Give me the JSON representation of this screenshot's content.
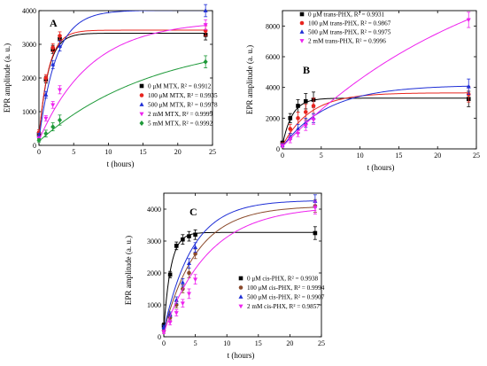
{
  "chart_data": [
    {
      "type": "scatter",
      "panel_label": "A",
      "xlabel": "t (hours)",
      "ylabel": "EPR amplitude (a. u.)",
      "xlim": [
        0,
        25
      ],
      "ylim": [
        0,
        4000
      ],
      "xticks": [
        0,
        5,
        10,
        15,
        20,
        25
      ],
      "yticks": [
        0,
        1000,
        2000,
        3000,
        4000
      ],
      "legend_position": "center-right",
      "x": [
        0,
        1,
        2,
        3,
        24
      ],
      "series": [
        {
          "name": "0 μM MTX, R² = 0.9912",
          "color": "#000000",
          "marker": "square",
          "values": [
            330,
            1950,
            2850,
            3150,
            3280
          ],
          "errors": [
            80,
            100,
            120,
            120,
            150
          ],
          "fit": {
            "a": 3330,
            "k": 0.75,
            "c": 200
          }
        },
        {
          "name": "100 μM MTX, R² = 0.9935",
          "color": "#e8251f",
          "marker": "circle",
          "values": [
            380,
            2000,
            2900,
            3250,
            3400
          ],
          "errors": [
            80,
            100,
            120,
            120,
            150
          ],
          "fit": {
            "a": 3420,
            "k": 0.72,
            "c": 250
          }
        },
        {
          "name": "500 μM MTX, R² = 0.9978",
          "color": "#1f2fd6",
          "marker": "triangle-up",
          "values": [
            280,
            1500,
            2400,
            2950,
            4000
          ],
          "errors": [
            80,
            100,
            120,
            150,
            180
          ],
          "fit": {
            "a": 4010,
            "k": 0.4,
            "c": 180
          }
        },
        {
          "name": "2 mM MTX, R² = 0.9999",
          "color": "#ee22ee",
          "marker": "triangle-down",
          "values": [
            200,
            800,
            1200,
            1650,
            3580
          ],
          "errors": [
            60,
            80,
            100,
            120,
            150
          ],
          "fit": {
            "a": 3700,
            "k": 0.135,
            "c": 150
          }
        },
        {
          "name": "5 mM MTX, R² = 0.9992",
          "color": "#1f9a3a",
          "marker": "diamond",
          "values": [
            150,
            350,
            550,
            750,
            2480
          ],
          "errors": [
            50,
            100,
            120,
            150,
            180
          ],
          "fit": {
            "a": 3200,
            "k": 0.06,
            "c": 120
          }
        }
      ]
    },
    {
      "type": "scatter",
      "panel_label": "B",
      "xlabel": "t (hours)",
      "ylabel": "EPR amplitude (a. u.)",
      "xlim": [
        0,
        25
      ],
      "ylim": [
        0,
        9000
      ],
      "xticks": [
        0,
        5,
        10,
        15,
        20,
        25
      ],
      "yticks": [
        0,
        2000,
        4000,
        6000,
        8000
      ],
      "legend_position": "top-left",
      "x": [
        0,
        1,
        2,
        3,
        4,
        24
      ],
      "series": [
        {
          "name": "0 μM trans-PHX, R² = 0.9931",
          "color": "#000000",
          "marker": "square",
          "values": [
            400,
            2000,
            2800,
            3100,
            3200,
            3250
          ],
          "errors": [
            100,
            300,
            400,
            500,
            500,
            500
          ],
          "fit": {
            "a": 3300,
            "k": 0.8,
            "c": 250
          }
        },
        {
          "name": "100 μM trans-PHX, R² = 0.9867",
          "color": "#e8251f",
          "marker": "circle",
          "values": [
            300,
            1300,
            2000,
            2400,
            2800,
            3550
          ],
          "errors": [
            100,
            300,
            400,
            500,
            500,
            500
          ],
          "fit": {
            "a": 3650,
            "k": 0.28,
            "c": 200
          }
        },
        {
          "name": "500 μM trans-PHX, R² = 0.9975",
          "color": "#1f2fd6",
          "marker": "triangle-up",
          "values": [
            250,
            800,
            1300,
            1700,
            2000,
            4050
          ],
          "errors": [
            100,
            200,
            300,
            300,
            300,
            500
          ],
          "fit": {
            "a": 4150,
            "k": 0.17,
            "c": 150
          }
        },
        {
          "name": "2 mM trans-PHX, R² = 0.9996",
          "color": "#ee22ee",
          "marker": "triangle-down",
          "values": [
            200,
            600,
            1000,
            1500,
            1900,
            8400
          ],
          "errors": [
            100,
            200,
            200,
            300,
            300,
            500
          ],
          "fit": {
            "a": 14000,
            "k": 0.038,
            "c": 150
          }
        }
      ]
    },
    {
      "type": "scatter",
      "panel_label": "C",
      "xlabel": "t (hours)",
      "ylabel": "EPR amplitude (a. u.)",
      "xlim": [
        0,
        25
      ],
      "ylim": [
        0,
        4500
      ],
      "xticks": [
        0,
        5,
        10,
        15,
        20,
        25
      ],
      "yticks": [
        0,
        1000,
        2000,
        3000,
        4000
      ],
      "legend_position": "center-right",
      "x": [
        0,
        1,
        2,
        3,
        4,
        5,
        24
      ],
      "series": [
        {
          "name": "0 μM cis-PHX, R² = 0.9938",
          "color": "#000000",
          "marker": "square",
          "values": [
            350,
            1950,
            2850,
            3050,
            3150,
            3200,
            3250
          ],
          "errors": [
            80,
            100,
            120,
            150,
            150,
            150,
            200
          ],
          "fit": {
            "a": 3270,
            "k": 0.9,
            "c": 250
          }
        },
        {
          "name": "100 μM cis-PHX, R² = 0.9994",
          "color": "#8b4a2b",
          "marker": "circle",
          "values": [
            200,
            600,
            1000,
            1500,
            2000,
            2600,
            4100
          ],
          "errors": [
            60,
            80,
            100,
            120,
            150,
            150,
            200
          ],
          "fit": {
            "a": 4100,
            "k": 0.19,
            "c": 180
          }
        },
        {
          "name": "500 μM cis-PHX, R² = 0.9907",
          "color": "#1f2fd6",
          "marker": "triangle-up",
          "values": [
            300,
            700,
            1150,
            1700,
            2300,
            2800,
            4250
          ],
          "errors": [
            60,
            80,
            100,
            120,
            150,
            150,
            200
          ],
          "fit": {
            "a": 4280,
            "k": 0.22,
            "c": 200
          }
        },
        {
          "name": "2 mM cis-PHX, R² = 0.9857",
          "color": "#ee22ee",
          "marker": "triangle-down",
          "values": [
            150,
            450,
            750,
            1050,
            1350,
            1800,
            4050
          ],
          "errors": [
            50,
            80,
            100,
            120,
            150,
            150,
            200
          ],
          "fit": {
            "a": 4100,
            "k": 0.14,
            "c": 130
          }
        }
      ]
    }
  ]
}
